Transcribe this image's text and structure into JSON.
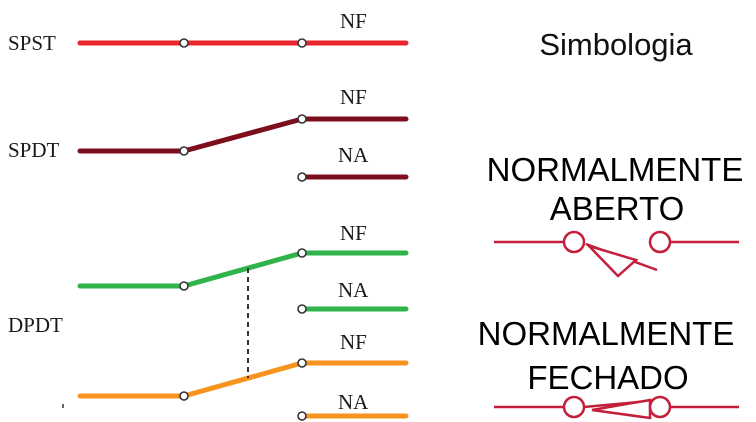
{
  "colors": {
    "spst": "#e8252d",
    "spdt": "#7d0e1e",
    "dpdt_top": "#2fb34a",
    "dpdt_bottom": "#f7931e",
    "symbol": "#c41e3a",
    "link": "#333333"
  },
  "switches": {
    "spst": {
      "label": "SPST",
      "contact_nf": "NF"
    },
    "spdt": {
      "label": "SPDT",
      "contact_nf": "NF",
      "contact_na": "NA"
    },
    "dpdt": {
      "label": "DPDT",
      "pole1": {
        "contact_nf": "NF",
        "contact_na": "NA"
      },
      "pole2": {
        "contact_nf": "NF",
        "contact_na": "NA"
      }
    }
  },
  "legend": {
    "title": "Simbologia",
    "normally_open": {
      "line1": "NORMALMENTE",
      "line2": "ABERTO"
    },
    "normally_closed": {
      "line1": "NORMALMENTE",
      "line2": "FECHADO"
    }
  }
}
